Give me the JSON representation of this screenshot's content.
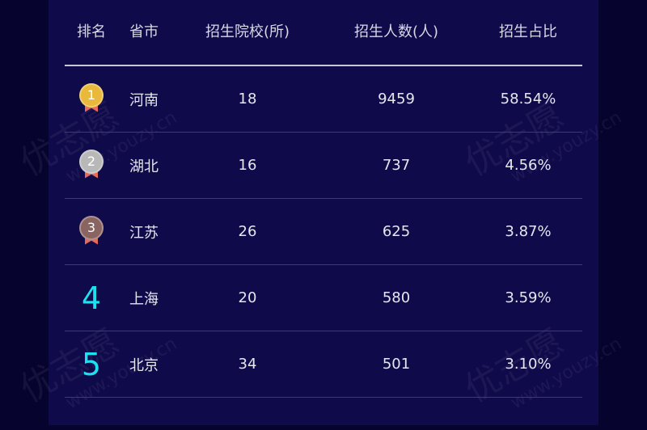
{
  "header": {
    "rank": "排名",
    "province": "省市",
    "schools": "招生院校(所)",
    "people": "招生人数(人)",
    "ratio": "招生占比"
  },
  "rows": [
    {
      "rank": "1",
      "province": "河南",
      "schools": "18",
      "people": "9459",
      "ratio": "58.54%",
      "medal": "gold",
      "color": "#e8b93a"
    },
    {
      "rank": "2",
      "province": "湖北",
      "schools": "16",
      "people": "737",
      "ratio": "4.56%",
      "medal": "silver",
      "color": "#b8b8b8"
    },
    {
      "rank": "3",
      "province": "江苏",
      "schools": "26",
      "people": "625",
      "ratio": "3.87%",
      "medal": "bronze",
      "color": "#8a6460"
    },
    {
      "rank": "4",
      "province": "上海",
      "schools": "20",
      "people": "580",
      "ratio": "3.59%"
    },
    {
      "rank": "5",
      "province": "北京",
      "schools": "34",
      "people": "501",
      "ratio": "3.10%"
    }
  ],
  "watermark": {
    "brand": "优志愿",
    "url": "www.youzy.cn"
  },
  "colors": {
    "rank_highlight": "#1ee0f0",
    "panel": "#0f0a4a",
    "divider": "#3035b8"
  }
}
